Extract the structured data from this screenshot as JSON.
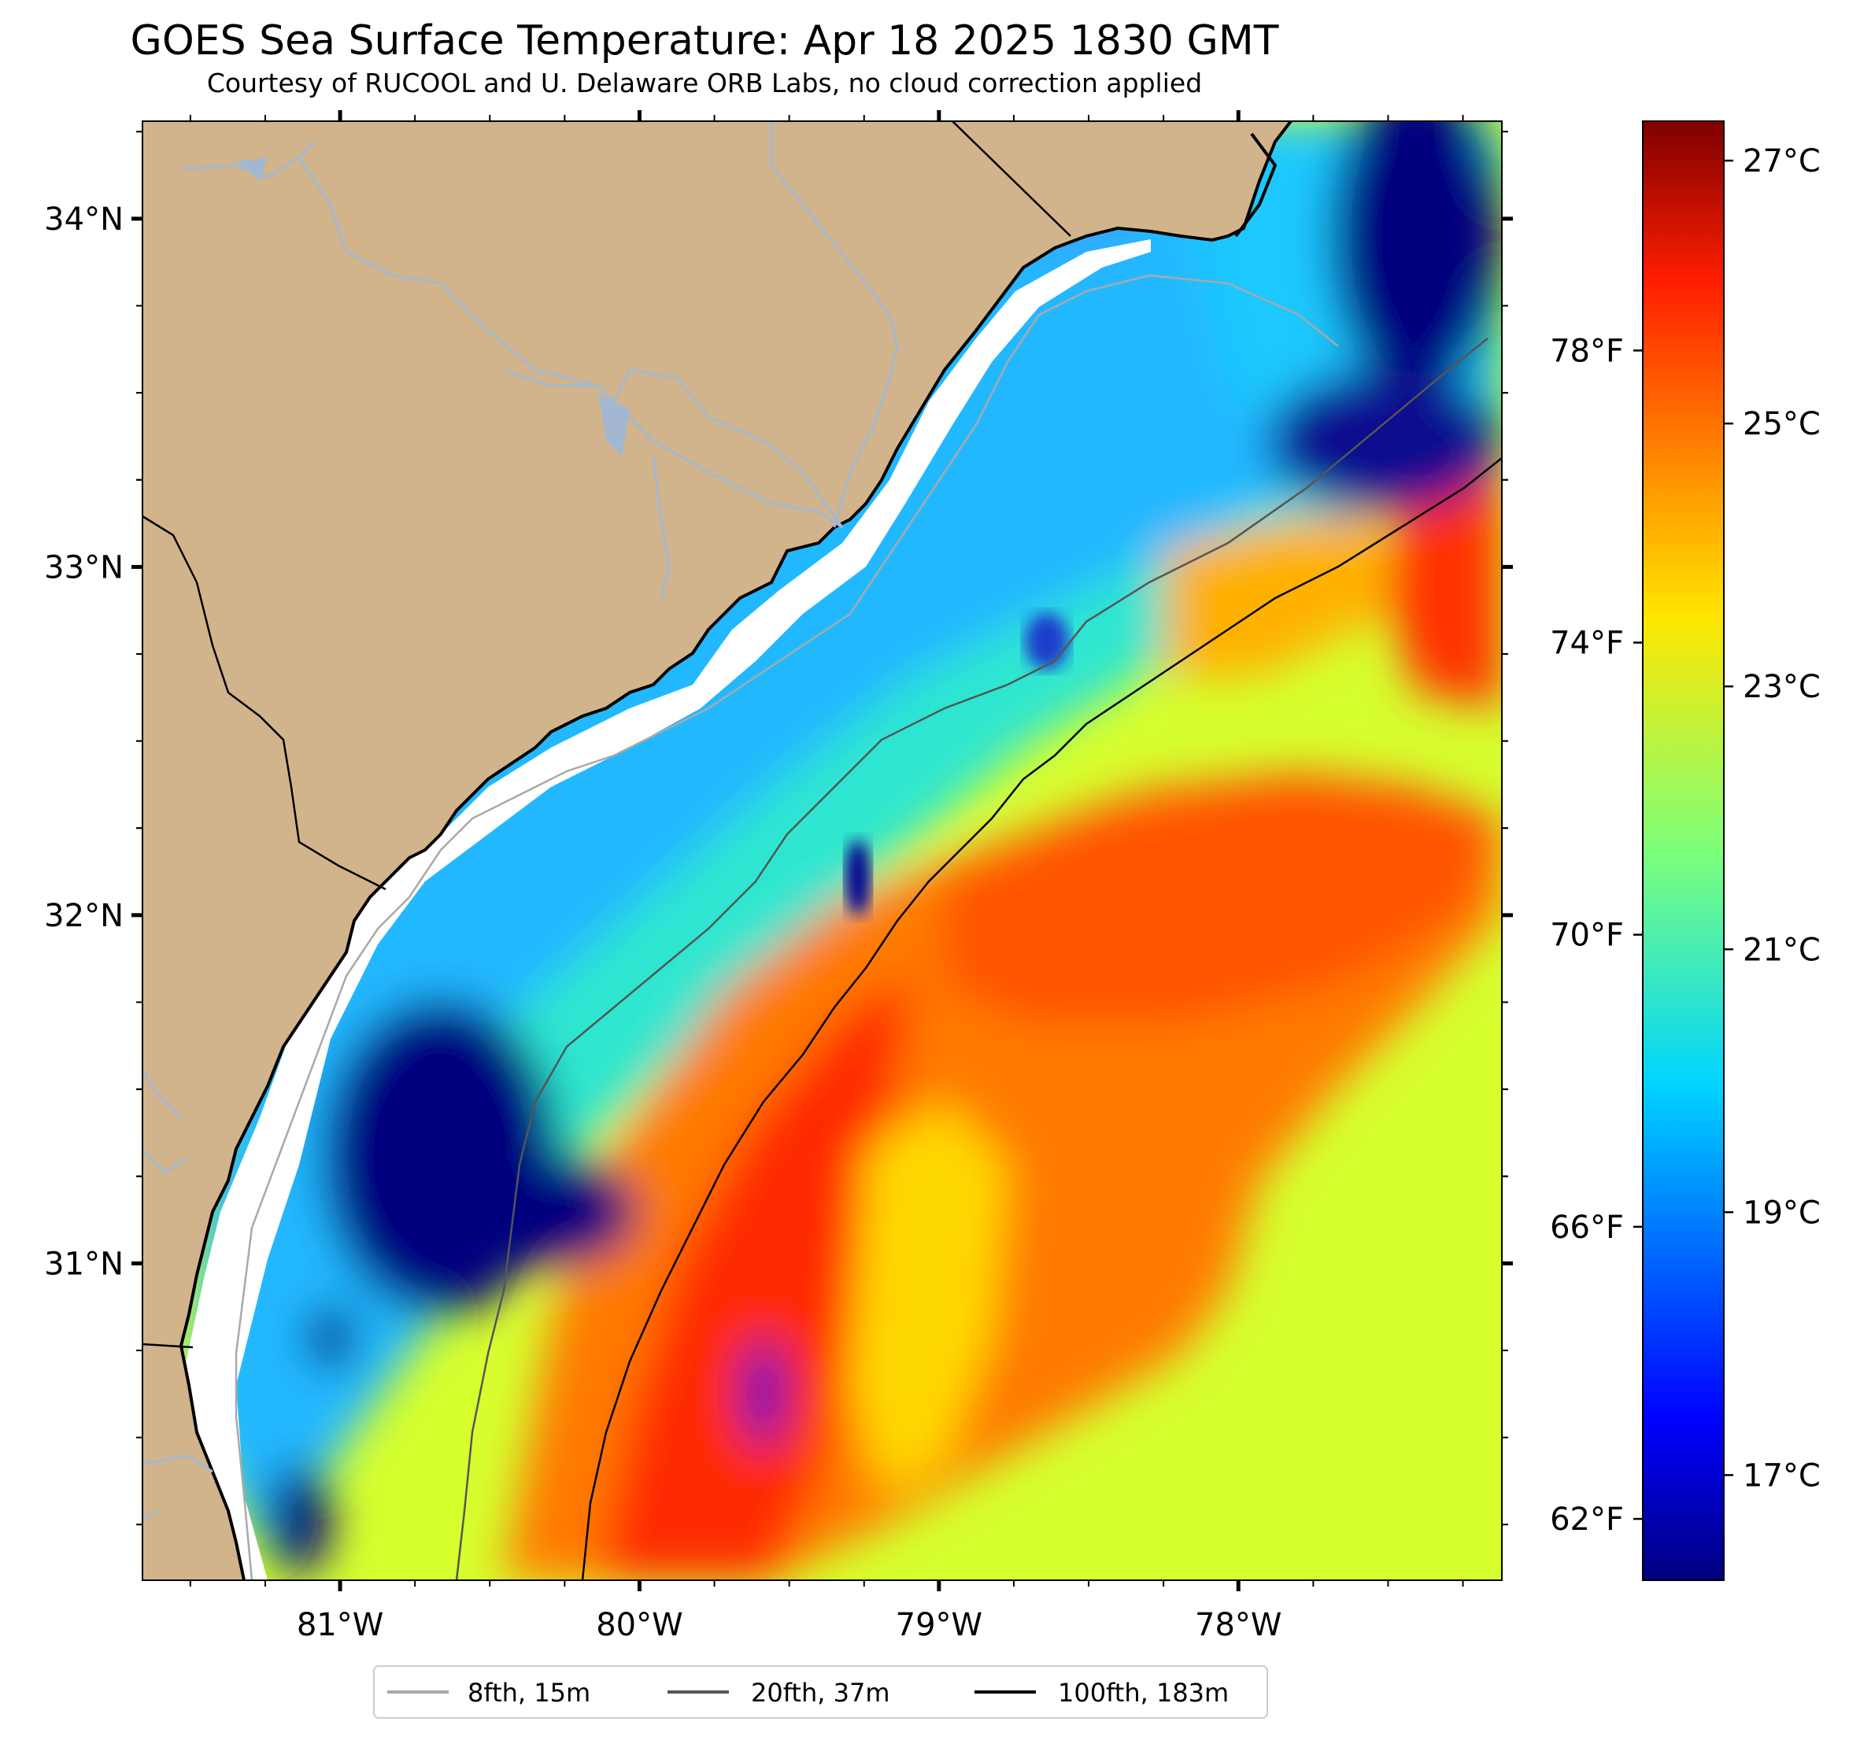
{
  "title": "GOES Sea Surface Temperature: Apr 18 2025 1830 GMT",
  "subtitle": "Courtesy of RUCOOL and U. Delaware ORB Labs, no cloud correction applied",
  "map": {
    "lon_range": [
      -81.66,
      -77.12
    ],
    "lat_range": [
      30.09,
      34.28
    ],
    "lat_ticks": [
      {
        "value": 34,
        "label": "34°N"
      },
      {
        "value": 33,
        "label": "33°N"
      },
      {
        "value": 32,
        "label": "32°N"
      },
      {
        "value": 31,
        "label": "31°N"
      }
    ],
    "lon_ticks": [
      {
        "value": -81,
        "label": "81°W"
      },
      {
        "value": -80,
        "label": "80°W"
      },
      {
        "value": -79,
        "label": "79°W"
      },
      {
        "value": -78,
        "label": "78°W"
      }
    ],
    "land_color": "#d1b48c",
    "river_color": "#a3b8d0"
  },
  "colorbar": {
    "range_c": [
      16.2,
      27.3
    ],
    "celsius_ticks": [
      {
        "value": 27,
        "label": "27°C"
      },
      {
        "value": 25,
        "label": "25°C"
      },
      {
        "value": 23,
        "label": "23°C"
      },
      {
        "value": 21,
        "label": "21°C"
      },
      {
        "value": 19,
        "label": "19°C"
      },
      {
        "value": 17,
        "label": "17°C"
      }
    ],
    "fahrenheit_ticks": [
      {
        "value": 78,
        "label": "78°F"
      },
      {
        "value": 74,
        "label": "74°F"
      },
      {
        "value": 70,
        "label": "70°F"
      },
      {
        "value": 66,
        "label": "66°F"
      },
      {
        "value": 62,
        "label": "62°F"
      }
    ],
    "colormap": "jet"
  },
  "legend": {
    "items": [
      {
        "label": "8fth, 15m",
        "color": "#a9a9a9"
      },
      {
        "label": "20fth, 37m",
        "color": "#555555"
      },
      {
        "label": "100fth, 183m",
        "color": "#000000"
      }
    ]
  }
}
